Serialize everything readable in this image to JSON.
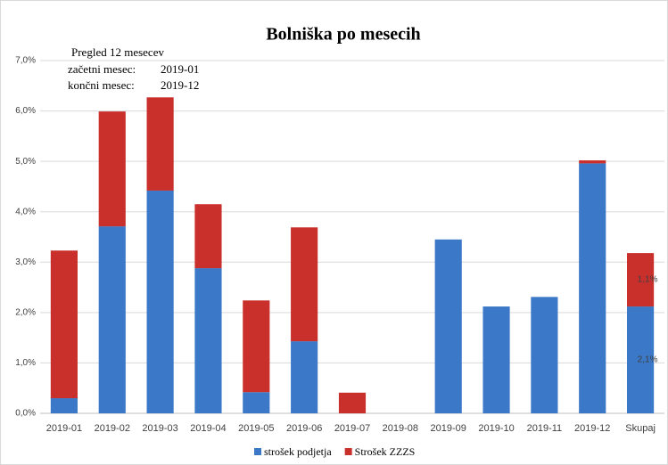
{
  "chart_data": {
    "type": "stacked-bar",
    "title": "Bolniška po mesecih",
    "annotations": [
      "Pregled 12 mesecev",
      "začetni mesec:",
      "2019-01",
      "končni mesec:",
      "2019-12"
    ],
    "categories": [
      "2019-01",
      "2019-02",
      "2019-03",
      "2019-04",
      "2019-05",
      "2019-06",
      "2019-07",
      "2019-08",
      "2019-09",
      "2019-10",
      "2019-11",
      "2019-12",
      "Skupaj"
    ],
    "series": [
      {
        "name": "strošek podjetja",
        "color": "#3b78c7",
        "values": [
          0.3,
          3.71,
          4.42,
          2.88,
          0.42,
          1.43,
          0,
          0,
          3.45,
          2.12,
          2.31,
          4.96,
          2.12
        ],
        "value_labels": [
          null,
          null,
          null,
          null,
          null,
          null,
          null,
          null,
          null,
          null,
          null,
          null,
          "2,1%"
        ]
      },
      {
        "name": "Strošek ZZZS",
        "color": "#c9302c",
        "values": [
          2.93,
          2.28,
          1.85,
          1.27,
          1.82,
          2.26,
          0.41,
          0,
          0,
          0,
          0,
          0.06,
          1.06
        ],
        "value_labels": [
          null,
          null,
          null,
          null,
          null,
          null,
          null,
          null,
          null,
          null,
          null,
          null,
          "1,1%"
        ]
      }
    ],
    "ylim": [
      0,
      7
    ],
    "yticks": [
      {
        "value": 0,
        "label": "0,0%"
      },
      {
        "value": 1,
        "label": "1,0%"
      },
      {
        "value": 2,
        "label": "2,0%"
      },
      {
        "value": 3,
        "label": "3,0%"
      },
      {
        "value": 4,
        "label": "4,0%"
      },
      {
        "value": 5,
        "label": "5,0%"
      },
      {
        "value": 6,
        "label": "6,0%"
      },
      {
        "value": 7,
        "label": "7,0%"
      }
    ],
    "grid": true,
    "legend": "bottom"
  }
}
